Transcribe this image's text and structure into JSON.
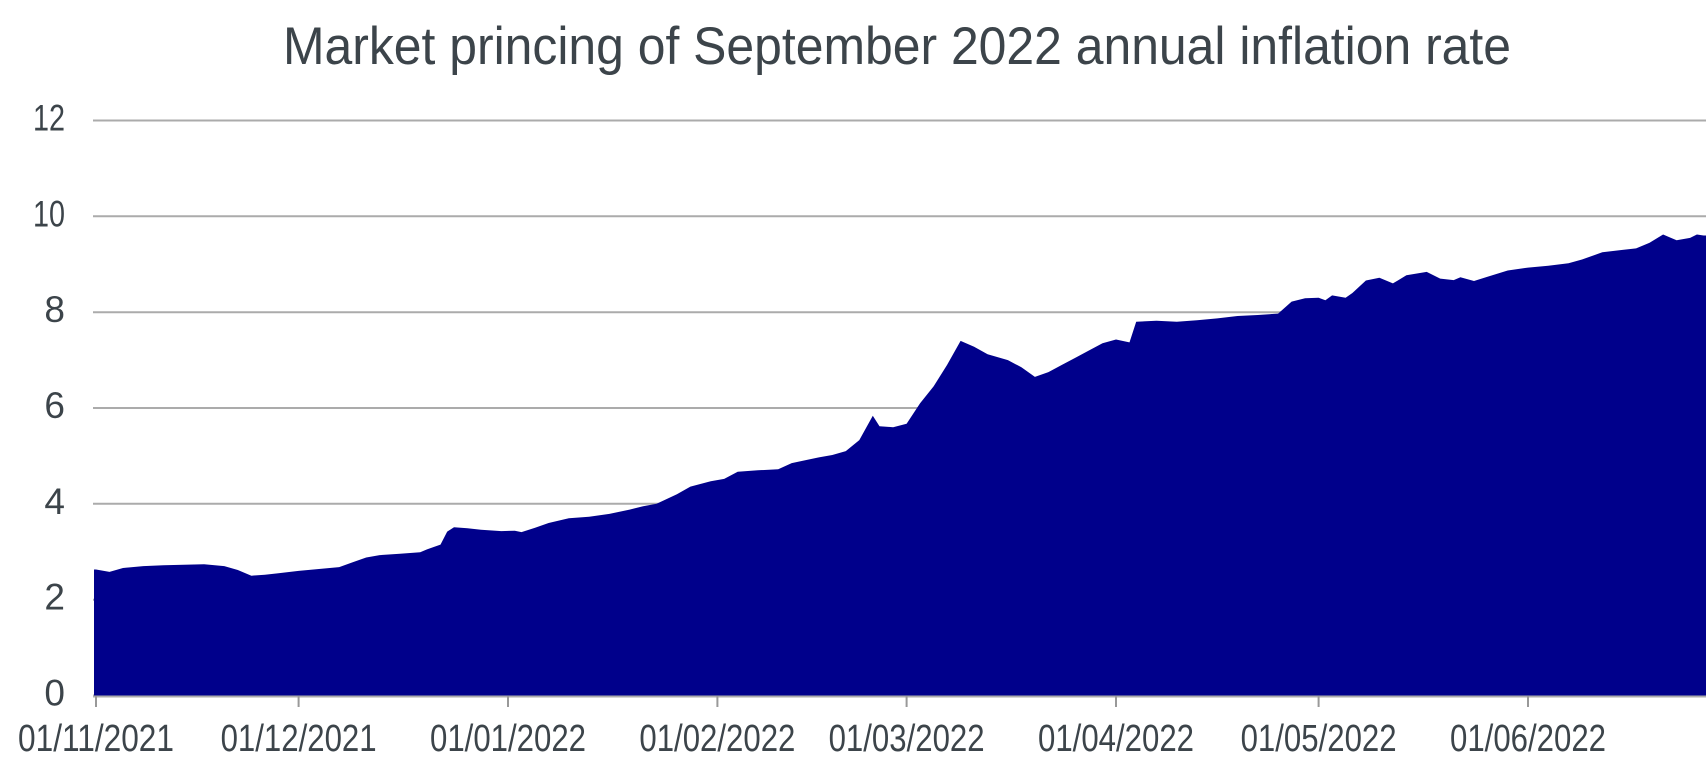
{
  "chart_data": {
    "type": "area",
    "title": "Market princing of September 2022 annual inflation rate",
    "xlabel": "",
    "ylabel": "",
    "ylim": [
      0,
      12
    ],
    "y_ticks": [
      0,
      2,
      4,
      6,
      8,
      10,
      12
    ],
    "x_tick_labels": [
      "01/11/2021",
      "01/12/2021",
      "01/01/2022",
      "01/02/2022",
      "01/03/2022",
      "01/04/2022",
      "01/05/2022",
      "01/06/2022"
    ],
    "x_tick_dates": [
      "2021-11-01",
      "2021-12-01",
      "2022-01-01",
      "2022-02-01",
      "2022-03-01",
      "2022-04-01",
      "2022-05-01",
      "2022-06-01"
    ],
    "x_range": [
      "2021-11-01",
      "2022-06-27"
    ],
    "grid": "horizontal",
    "legend": "none",
    "colors": {
      "area_fill": "#00008B",
      "gridline": "#ABABAB",
      "tick": "#999999",
      "axis_text": "#3C444A",
      "title_text": "#3C444A",
      "background": "#FFFFFF"
    },
    "series": [
      {
        "points": [
          [
            "2021-11-01",
            2.63
          ],
          [
            "2021-11-03",
            2.58
          ],
          [
            "2021-11-05",
            2.66
          ],
          [
            "2021-11-08",
            2.7
          ],
          [
            "2021-11-11",
            2.72
          ],
          [
            "2021-11-14",
            2.73
          ],
          [
            "2021-11-17",
            2.74
          ],
          [
            "2021-11-20",
            2.7
          ],
          [
            "2021-11-22",
            2.62
          ],
          [
            "2021-11-24",
            2.5
          ],
          [
            "2021-11-26",
            2.52
          ],
          [
            "2021-11-28",
            2.55
          ],
          [
            "2021-12-01",
            2.6
          ],
          [
            "2021-12-04",
            2.64
          ],
          [
            "2021-12-07",
            2.68
          ],
          [
            "2021-12-09",
            2.78
          ],
          [
            "2021-12-11",
            2.88
          ],
          [
            "2021-12-13",
            2.93
          ],
          [
            "2021-12-16",
            2.96
          ],
          [
            "2021-12-19",
            2.99
          ],
          [
            "2021-12-20",
            3.05
          ],
          [
            "2021-12-21",
            3.1
          ],
          [
            "2021-12-22",
            3.15
          ],
          [
            "2021-12-23",
            3.42
          ],
          [
            "2021-12-24",
            3.51
          ],
          [
            "2021-12-26",
            3.49
          ],
          [
            "2021-12-28",
            3.46
          ],
          [
            "2021-12-31",
            3.43
          ],
          [
            "2022-01-02",
            3.44
          ],
          [
            "2022-01-03",
            3.41
          ],
          [
            "2022-01-05",
            3.5
          ],
          [
            "2022-01-07",
            3.6
          ],
          [
            "2022-01-10",
            3.7
          ],
          [
            "2022-01-13",
            3.73
          ],
          [
            "2022-01-16",
            3.79
          ],
          [
            "2022-01-19",
            3.88
          ],
          [
            "2022-01-21",
            3.95
          ],
          [
            "2022-01-23",
            4.0
          ],
          [
            "2022-01-26",
            4.2
          ],
          [
            "2022-01-28",
            4.36
          ],
          [
            "2022-01-31",
            4.47
          ],
          [
            "2022-02-02",
            4.52
          ],
          [
            "2022-02-04",
            4.67
          ],
          [
            "2022-02-07",
            4.7
          ],
          [
            "2022-02-10",
            4.72
          ],
          [
            "2022-02-12",
            4.85
          ],
          [
            "2022-02-14",
            4.91
          ],
          [
            "2022-02-16",
            4.97
          ],
          [
            "2022-02-18",
            5.02
          ],
          [
            "2022-02-20",
            5.1
          ],
          [
            "2022-02-22",
            5.33
          ],
          [
            "2022-02-24",
            5.84
          ],
          [
            "2022-02-25",
            5.62
          ],
          [
            "2022-02-27",
            5.6
          ],
          [
            "2022-03-01",
            5.67
          ],
          [
            "2022-03-03",
            6.1
          ],
          [
            "2022-03-05",
            6.45
          ],
          [
            "2022-03-07",
            6.9
          ],
          [
            "2022-03-09",
            7.4
          ],
          [
            "2022-03-11",
            7.28
          ],
          [
            "2022-03-13",
            7.12
          ],
          [
            "2022-03-16",
            7.0
          ],
          [
            "2022-03-18",
            6.85
          ],
          [
            "2022-03-20",
            6.65
          ],
          [
            "2022-03-22",
            6.75
          ],
          [
            "2022-03-24",
            6.9
          ],
          [
            "2022-03-26",
            7.05
          ],
          [
            "2022-03-28",
            7.2
          ],
          [
            "2022-03-30",
            7.35
          ],
          [
            "2022-04-01",
            7.43
          ],
          [
            "2022-04-03",
            7.37
          ],
          [
            "2022-04-04",
            7.8
          ],
          [
            "2022-04-07",
            7.82
          ],
          [
            "2022-04-10",
            7.8
          ],
          [
            "2022-04-13",
            7.83
          ],
          [
            "2022-04-16",
            7.87
          ],
          [
            "2022-04-19",
            7.92
          ],
          [
            "2022-04-22",
            7.94
          ],
          [
            "2022-04-25",
            7.97
          ],
          [
            "2022-04-27",
            8.22
          ],
          [
            "2022-04-29",
            8.29
          ],
          [
            "2022-05-01",
            8.3
          ],
          [
            "2022-05-02",
            8.25
          ],
          [
            "2022-05-03",
            8.35
          ],
          [
            "2022-05-05",
            8.3
          ],
          [
            "2022-05-06",
            8.4
          ],
          [
            "2022-05-08",
            8.66
          ],
          [
            "2022-05-10",
            8.72
          ],
          [
            "2022-05-12",
            8.6
          ],
          [
            "2022-05-14",
            8.77
          ],
          [
            "2022-05-17",
            8.84
          ],
          [
            "2022-05-19",
            8.7
          ],
          [
            "2022-05-21",
            8.67
          ],
          [
            "2022-05-22",
            8.73
          ],
          [
            "2022-05-24",
            8.65
          ],
          [
            "2022-05-26",
            8.74
          ],
          [
            "2022-05-29",
            8.87
          ],
          [
            "2022-06-01",
            8.93
          ],
          [
            "2022-06-04",
            8.97
          ],
          [
            "2022-06-07",
            9.02
          ],
          [
            "2022-06-09",
            9.1
          ],
          [
            "2022-06-12",
            9.25
          ],
          [
            "2022-06-15",
            9.3
          ],
          [
            "2022-06-17",
            9.33
          ],
          [
            "2022-06-19",
            9.45
          ],
          [
            "2022-06-21",
            9.62
          ],
          [
            "2022-06-22",
            9.56
          ],
          [
            "2022-06-23",
            9.5
          ],
          [
            "2022-06-25",
            9.55
          ],
          [
            "2022-06-26",
            9.62
          ],
          [
            "2022-06-27",
            9.6
          ]
        ]
      }
    ]
  }
}
